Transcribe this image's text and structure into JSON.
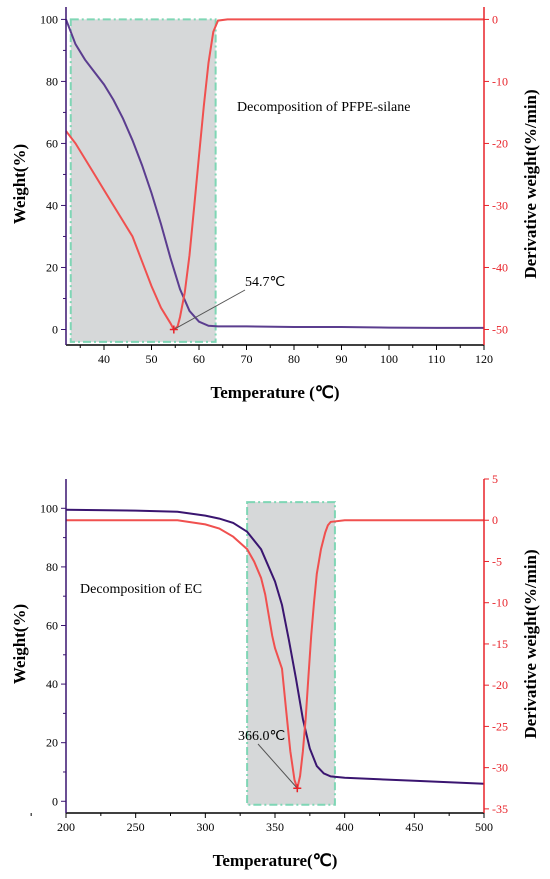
{
  "chart_data": [
    {
      "type": "line",
      "xlabel": "Temperature (℃)",
      "ylabel": "Weight(%)",
      "y2label": "Derivative weight(%/min)",
      "xlim": [
        32,
        120
      ],
      "ylim": [
        -5,
        104
      ],
      "y2lim": [
        -52.5,
        2
      ],
      "xticks": [
        40,
        50,
        60,
        70,
        80,
        90,
        100,
        110,
        120
      ],
      "yticks": [
        0,
        20,
        40,
        60,
        80,
        100
      ],
      "y2ticks": [
        0,
        -10,
        -20,
        -30,
        -40,
        -50
      ],
      "axis_colors": {
        "left": "#3a1570",
        "right": "#e8232a",
        "bottom": "#000000"
      },
      "highlight": {
        "x": [
          33,
          63.5
        ],
        "y2": [
          -52,
          0
        ],
        "fill": "#d6d8d9",
        "stroke": "#7fd6b5"
      },
      "annotation": {
        "text": "Decomposition of PFPE-silane"
      },
      "peak": {
        "x": 54.7,
        "y2": -50,
        "label": "54.7℃"
      },
      "series": [
        {
          "axis": "left",
          "color": "#5b3d8f",
          "x": [
            32,
            34,
            36,
            38,
            40,
            42,
            44,
            46,
            48,
            50,
            52,
            54,
            56,
            58,
            60,
            62,
            64,
            66,
            70,
            80,
            90,
            100,
            110,
            120
          ],
          "y": [
            100,
            92,
            87,
            83,
            79,
            74,
            68,
            61,
            53,
            44,
            34,
            23,
            13,
            6,
            2.5,
            1.2,
            1,
            1,
            1,
            0.8,
            0.8,
            0.6,
            0.5,
            0.5
          ]
        },
        {
          "axis": "right",
          "color": "#f0504f",
          "x": [
            32,
            34,
            36,
            38,
            40,
            42,
            44,
            46,
            48,
            50,
            52,
            54,
            54.7,
            55.5,
            56,
            57,
            58,
            59,
            60,
            61,
            62,
            63,
            64,
            66,
            70,
            80,
            90,
            100,
            110,
            120
          ],
          "y": [
            -18,
            -20,
            -22.5,
            -25,
            -27.5,
            -30,
            -32.5,
            -35,
            -39,
            -43,
            -46.5,
            -49,
            -50,
            -49.5,
            -48,
            -44,
            -38,
            -30,
            -22,
            -14,
            -7,
            -2,
            -0.2,
            0,
            0,
            0,
            0,
            0,
            0,
            0
          ]
        }
      ]
    },
    {
      "type": "line",
      "xlabel": "Temperature(℃)",
      "ylabel": "Weight(%)",
      "y2label": "Derivative weight(%/min)",
      "xlim": [
        200,
        500
      ],
      "ylim": [
        -4,
        110
      ],
      "y2lim": [
        -35.5,
        5
      ],
      "xticks": [
        200,
        250,
        300,
        350,
        400,
        450,
        500
      ],
      "yticks": [
        0,
        20,
        40,
        60,
        80,
        100
      ],
      "y2ticks": [
        5,
        0,
        -5,
        -10,
        -15,
        -20,
        -25,
        -30,
        -35
      ],
      "axis_colors": {
        "left": "#3a1570",
        "right": "#e8232a",
        "bottom": "#000000"
      },
      "highlight": {
        "x": [
          330,
          393
        ],
        "y2": [
          -34.5,
          2.2
        ],
        "fill": "#d6d8d9",
        "stroke": "#7fd6b5"
      },
      "annotation": {
        "text": "Decomposition of EC"
      },
      "peak": {
        "x": 366,
        "y2": -32.5,
        "label": "366.0℃"
      },
      "series": [
        {
          "axis": "left",
          "color": "#3a1570",
          "x": [
            200,
            250,
            280,
            300,
            310,
            320,
            330,
            340,
            350,
            355,
            360,
            365,
            370,
            375,
            380,
            385,
            390,
            400,
            450,
            500
          ],
          "y": [
            99.5,
            99.2,
            98.8,
            97.5,
            96.5,
            95,
            92,
            86,
            75,
            67,
            55,
            42,
            28,
            18,
            12,
            9.5,
            8.5,
            8,
            7,
            6
          ]
        },
        {
          "axis": "right",
          "color": "#f0504f",
          "x": [
            200,
            250,
            280,
            300,
            310,
            320,
            330,
            335,
            340,
            343,
            345,
            348,
            350,
            355,
            358,
            361,
            364,
            366,
            368,
            370,
            372,
            374,
            376,
            378,
            380,
            383,
            386,
            388,
            390,
            400,
            450,
            500
          ],
          "y": [
            0,
            0,
            0,
            -0.5,
            -1,
            -2,
            -3.5,
            -5,
            -7,
            -9,
            -11,
            -14,
            -15.5,
            -18,
            -23,
            -28,
            -31.5,
            -32.5,
            -31,
            -28,
            -24,
            -19,
            -14,
            -10,
            -6.5,
            -3.5,
            -1.5,
            -0.6,
            -0.2,
            0,
            0,
            0
          ]
        }
      ]
    }
  ]
}
